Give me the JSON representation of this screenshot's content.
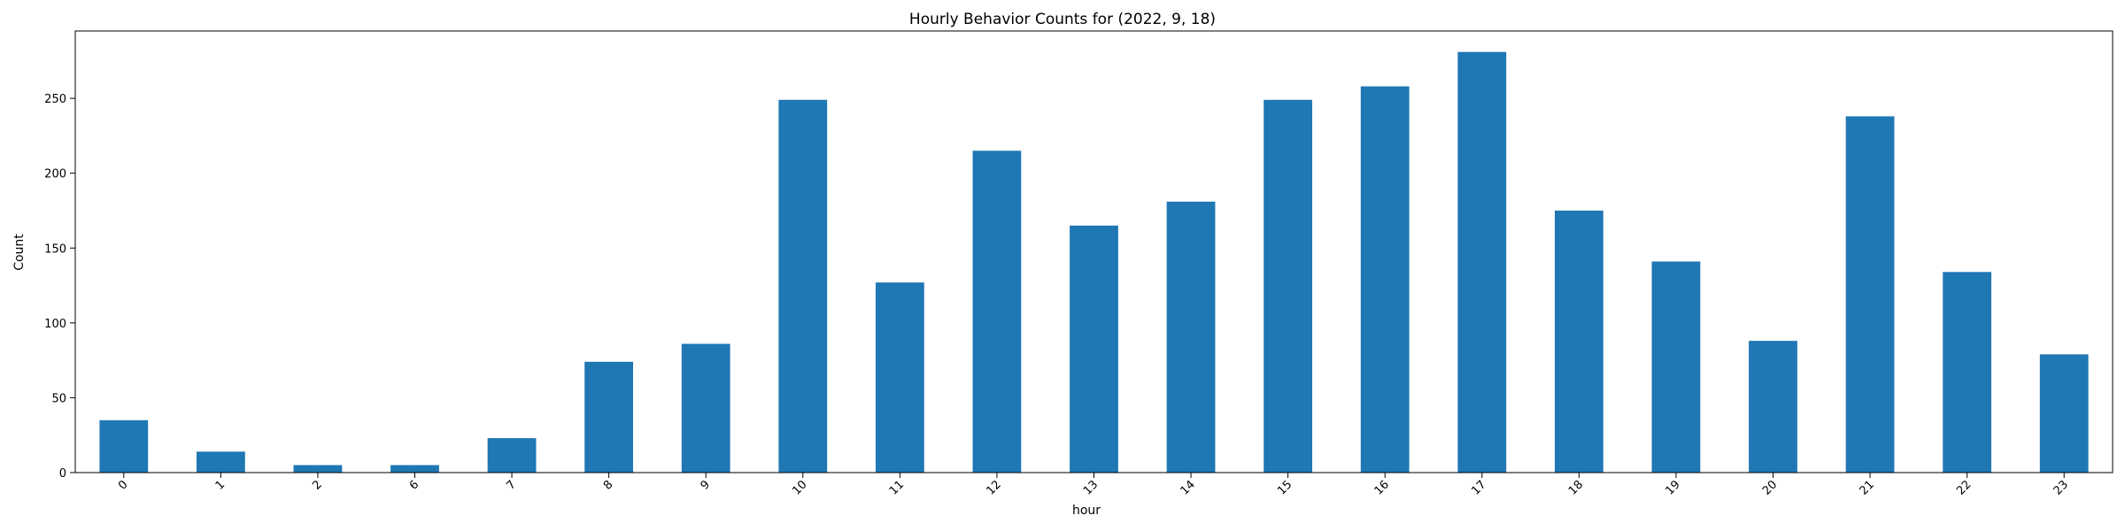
{
  "chart_data": {
    "type": "bar",
    "title": "Hourly Behavior Counts for (2022, 9, 18)",
    "xlabel": "hour",
    "ylabel": "Count",
    "categories": [
      "0",
      "1",
      "2",
      "6",
      "7",
      "8",
      "9",
      "10",
      "11",
      "12",
      "13",
      "14",
      "15",
      "16",
      "17",
      "18",
      "19",
      "20",
      "21",
      "22",
      "23"
    ],
    "values": [
      35,
      14,
      5,
      5,
      23,
      74,
      86,
      249,
      127,
      215,
      165,
      181,
      249,
      258,
      281,
      175,
      141,
      88,
      238,
      134,
      79
    ],
    "ylim": [
      0,
      295
    ],
    "yticks": [
      0,
      50,
      100,
      150,
      200,
      250
    ],
    "bar_color": "#1f77b4",
    "grid": false,
    "legend": "none"
  }
}
